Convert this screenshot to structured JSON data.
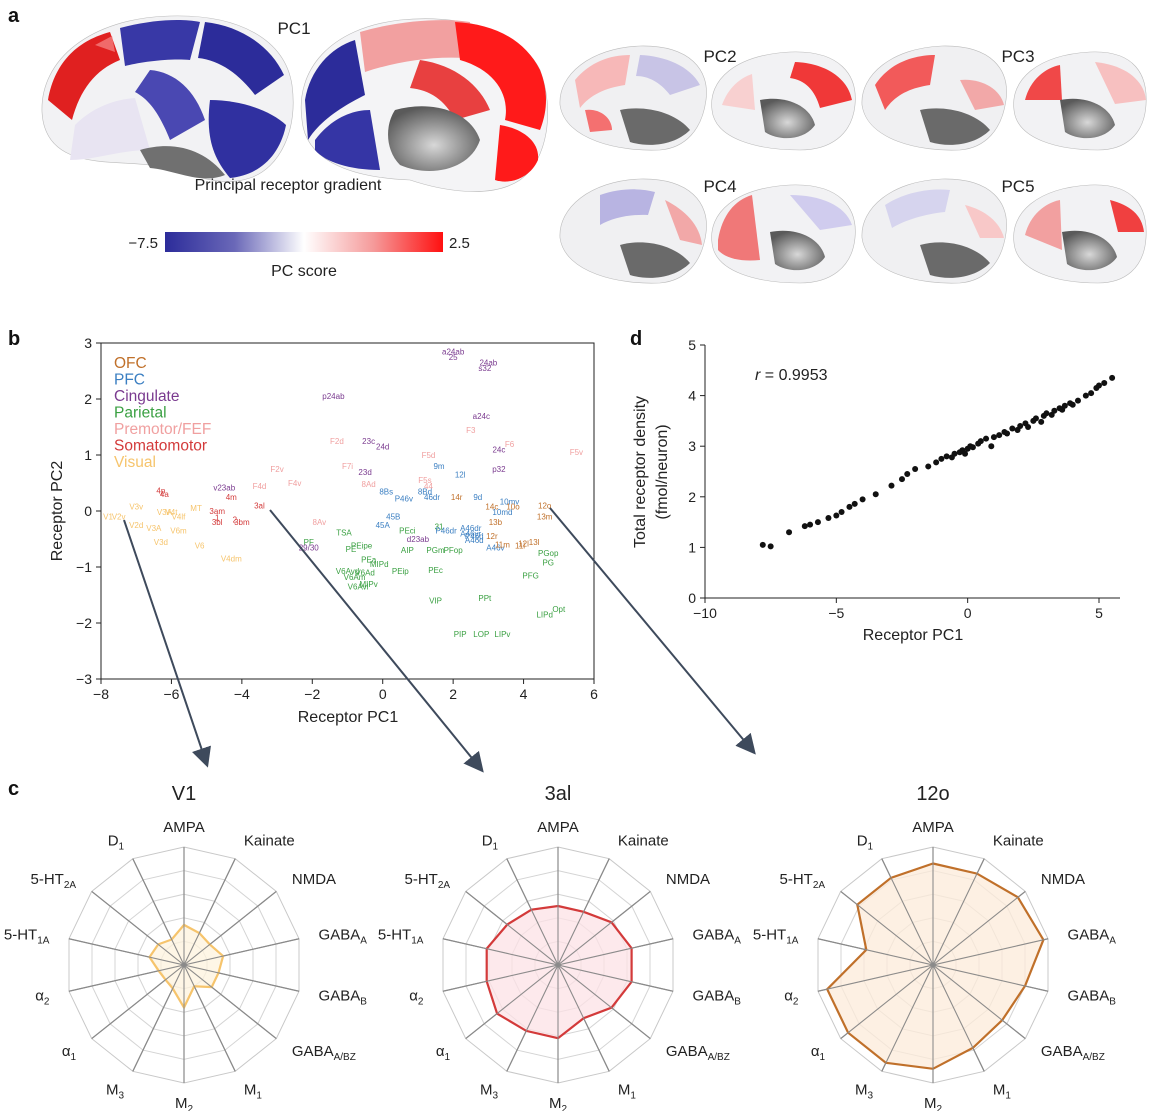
{
  "figure": {
    "panel_labels": {
      "a": "a",
      "b": "b",
      "c": "c",
      "d": "d"
    },
    "colors": {
      "OFC": "#c0702a",
      "PFC": "#3b7fc2",
      "Cingulate": "#7a3a8f",
      "Parietal": "#3aa042",
      "Premotor/FEF": "#f0a0a0",
      "Somatomotor": "#d33a3a",
      "Visual": "#f6c46c",
      "blue_end": "#2c2c9a",
      "red_end": "#ff1010",
      "arrow": "#3e4a5c"
    }
  },
  "panel_a": {
    "pc_titles": [
      "PC1",
      "PC2",
      "PC3",
      "PC4",
      "PC5"
    ],
    "caption": "Principal receptor gradient",
    "colorbar": {
      "min_label": "−7.5",
      "max_label": "2.5",
      "label": "PC score"
    },
    "brain_views": [
      "pc1-lateral-surface",
      "pc1-medial-surface",
      "pc2-lateral-surface",
      "pc2-medial-surface",
      "pc3-lateral-surface",
      "pc3-medial-surface",
      "pc4-lateral-surface",
      "pc4-medial-surface",
      "pc5-lateral-surface",
      "pc5-medial-surface"
    ]
  },
  "panel_b": {
    "xlabel": "Receptor PC1",
    "ylabel": "Receptor PC2",
    "xlim": [
      -8,
      6
    ],
    "ylim": [
      -3,
      3
    ],
    "xticks": [
      "−8",
      "−6",
      "−4",
      "−2",
      "0",
      "2",
      "4",
      "6"
    ],
    "yticks": [
      "−3",
      "−2",
      "−1",
      "0",
      "1",
      "2",
      "3"
    ],
    "legend": [
      {
        "name": "OFC",
        "color": "#c0702a"
      },
      {
        "name": "PFC",
        "color": "#3b7fc2"
      },
      {
        "name": "Cingulate",
        "color": "#7a3a8f"
      },
      {
        "name": "Parietal",
        "color": "#3aa042"
      },
      {
        "name": "Premotor/FEF",
        "color": "#f0a0a0"
      },
      {
        "name": "Somatomotor",
        "color": "#d33a3a"
      },
      {
        "name": "Visual",
        "color": "#f6c46c"
      }
    ],
    "areas": [
      [
        "a24ab",
        2.0,
        2.85,
        "Cingulate"
      ],
      [
        "25",
        2.0,
        2.75,
        "Cingulate"
      ],
      [
        "24ab",
        3.0,
        2.65,
        "Cingulate"
      ],
      [
        "s32",
        2.9,
        2.55,
        "Cingulate"
      ],
      [
        "p24ab",
        -1.4,
        2.05,
        "Cingulate"
      ],
      [
        "a24c",
        2.8,
        1.7,
        "Cingulate"
      ],
      [
        "F3",
        2.5,
        1.45,
        "Premotor/FEF"
      ],
      [
        "F2d",
        -1.3,
        1.25,
        "Premotor/FEF"
      ],
      [
        "23c",
        -0.4,
        1.25,
        "Cingulate"
      ],
      [
        "24d",
        0.0,
        1.15,
        "Cingulate"
      ],
      [
        "F6",
        3.6,
        1.2,
        "Premotor/FEF"
      ],
      [
        "24c",
        3.3,
        1.1,
        "Cingulate"
      ],
      [
        "F5v",
        5.5,
        1.05,
        "Premotor/FEF"
      ],
      [
        "F5d",
        1.3,
        1.0,
        "Premotor/FEF"
      ],
      [
        "9m",
        1.6,
        0.8,
        "PFC"
      ],
      [
        "F7i",
        -1.0,
        0.8,
        "Premotor/FEF"
      ],
      [
        "23d",
        -0.5,
        0.7,
        "Cingulate"
      ],
      [
        "12l",
        2.2,
        0.65,
        "PFC"
      ],
      [
        "p32",
        3.3,
        0.75,
        "Cingulate"
      ],
      [
        "F2v",
        -3.0,
        0.75,
        "Premotor/FEF"
      ],
      [
        "F5s",
        1.2,
        0.55,
        "Premotor/FEF"
      ],
      [
        "F4v",
        -2.5,
        0.5,
        "Premotor/FEF"
      ],
      [
        "F4d",
        -3.5,
        0.45,
        "Premotor/FEF"
      ],
      [
        "8Ad",
        -0.4,
        0.48,
        "Premotor/FEF"
      ],
      [
        "44",
        1.3,
        0.45,
        "Premotor/FEF"
      ],
      [
        "9d",
        2.7,
        0.25,
        "PFC"
      ],
      [
        "8Bs",
        0.1,
        0.35,
        "PFC"
      ],
      [
        "8Bd",
        1.2,
        0.35,
        "PFC"
      ],
      [
        "14r",
        2.1,
        0.25,
        "OFC"
      ],
      [
        "P46v",
        0.6,
        0.22,
        "PFC"
      ],
      [
        "46dr",
        1.4,
        0.25,
        "PFC"
      ],
      [
        "10mv",
        3.6,
        0.17,
        "PFC"
      ],
      [
        "14c",
        3.1,
        0.08,
        "OFC"
      ],
      [
        "10o",
        3.7,
        0.08,
        "OFC"
      ],
      [
        "10md",
        3.4,
        -0.02,
        "PFC"
      ],
      [
        "12o",
        4.6,
        0.1,
        "OFC"
      ],
      [
        "v23ab",
        -4.5,
        0.42,
        "Cingulate"
      ],
      [
        "4p",
        -6.3,
        0.37,
        "Somatomotor"
      ],
      [
        "4a",
        -6.2,
        0.3,
        "Somatomotor"
      ],
      [
        "4m",
        -4.3,
        0.25,
        "Somatomotor"
      ],
      [
        "3al",
        -3.5,
        0.1,
        "Somatomotor"
      ],
      [
        "3am",
        -4.7,
        0.0,
        "Somatomotor"
      ],
      [
        "1",
        -4.7,
        -0.12,
        "Somatomotor"
      ],
      [
        "3bl",
        -4.7,
        -0.2,
        "Somatomotor"
      ],
      [
        "2",
        -4.2,
        -0.15,
        "Somatomotor"
      ],
      [
        "3bm",
        -4.0,
        -0.2,
        "Somatomotor"
      ],
      [
        "13b",
        3.2,
        -0.2,
        "OFC"
      ],
      [
        "13m",
        4.6,
        -0.1,
        "OFC"
      ],
      [
        "V3v",
        -7.0,
        0.08,
        "Visual"
      ],
      [
        "MT",
        -5.3,
        0.05,
        "Visual"
      ],
      [
        "V4t",
        -6.0,
        -0.02,
        "Visual"
      ],
      [
        "V3A",
        -6.2,
        -0.02,
        "Visual"
      ],
      [
        "V4lf",
        -5.8,
        -0.1,
        "Visual"
      ],
      [
        "V1",
        -7.8,
        -0.1,
        "Visual"
      ],
      [
        "V2v",
        -7.5,
        -0.1,
        "Visual"
      ],
      [
        "V2d",
        -7.0,
        -0.25,
        "Visual"
      ],
      [
        "V3A",
        -6.5,
        -0.3,
        "Visual"
      ],
      [
        "V6m",
        -5.8,
        -0.35,
        "Visual"
      ],
      [
        "V3d",
        -6.3,
        -0.55,
        "Visual"
      ],
      [
        "V6",
        -5.2,
        -0.62,
        "Visual"
      ],
      [
        "V4dm",
        -4.3,
        -0.85,
        "Visual"
      ],
      [
        "8Av",
        -1.8,
        -0.2,
        "Premotor/FEF"
      ],
      [
        "TSA",
        -1.1,
        -0.38,
        "Parietal"
      ],
      [
        "45B",
        0.3,
        -0.1,
        "PFC"
      ],
      [
        "45A",
        0.0,
        -0.25,
        "PFC"
      ],
      [
        "PEci",
        0.7,
        -0.35,
        "Parietal"
      ],
      [
        "31",
        1.6,
        -0.28,
        "Parietal"
      ],
      [
        "d23ab",
        1.0,
        -0.5,
        "Cingulate"
      ],
      [
        "P46dr",
        1.8,
        -0.35,
        "PFC"
      ],
      [
        "A46dr",
        2.5,
        -0.3,
        "PFC"
      ],
      [
        "A46vr",
        2.5,
        -0.4,
        "PFC"
      ],
      [
        "A46d",
        2.6,
        -0.52,
        "PFC"
      ],
      [
        "P46d",
        2.6,
        -0.45,
        "PFC"
      ],
      [
        "12r",
        3.1,
        -0.45,
        "OFC"
      ],
      [
        "12l",
        4.0,
        -0.58,
        "OFC"
      ],
      [
        "13l",
        4.3,
        -0.55,
        "OFC"
      ],
      [
        "A46v",
        3.2,
        -0.65,
        "PFC"
      ],
      [
        "11m",
        3.4,
        -0.6,
        "OFC"
      ],
      [
        "11l",
        3.9,
        -0.62,
        "OFC"
      ],
      [
        "PGop",
        4.7,
        -0.75,
        "Parietal"
      ],
      [
        "PG",
        4.7,
        -0.92,
        "Parietal"
      ],
      [
        "PFG",
        4.2,
        -1.15,
        "Parietal"
      ],
      [
        "PF",
        -2.1,
        -0.55,
        "Parietal"
      ],
      [
        "29/30",
        -2.1,
        -0.65,
        "Cingulate"
      ],
      [
        "PEipe",
        -0.6,
        -0.62,
        "Parietal"
      ],
      [
        "PE",
        -0.9,
        -0.68,
        "Parietal"
      ],
      [
        "AIP",
        0.7,
        -0.7,
        "Parietal"
      ],
      [
        "PGm",
        1.5,
        -0.7,
        "Parietal"
      ],
      [
        "PFop",
        2.0,
        -0.7,
        "Parietal"
      ],
      [
        "PEa",
        -0.4,
        -0.87,
        "Parietal"
      ],
      [
        "MIPd",
        -0.1,
        -0.95,
        "Parietal"
      ],
      [
        "PEip",
        0.5,
        -1.07,
        "Parietal"
      ],
      [
        "PEc",
        1.5,
        -1.05,
        "Parietal"
      ],
      [
        "V6Avd",
        -1.0,
        -1.07,
        "Parietal"
      ],
      [
        "V6Ad",
        -0.5,
        -1.1,
        "Parietal"
      ],
      [
        "V6Am",
        -0.8,
        -1.18,
        "Parietal"
      ],
      [
        "MIPv",
        -0.4,
        -1.3,
        "Parietal"
      ],
      [
        "V6Avl",
        -0.7,
        -1.35,
        "Parietal"
      ],
      [
        "VIP",
        1.5,
        -1.6,
        "Parietal"
      ],
      [
        "PPt",
        2.9,
        -1.55,
        "Parietal"
      ],
      [
        "Opt",
        5.0,
        -1.75,
        "Parietal"
      ],
      [
        "LIPd",
        4.6,
        -1.85,
        "Parietal"
      ],
      [
        "PIP",
        2.2,
        -2.2,
        "Parietal"
      ],
      [
        "LOP",
        2.8,
        -2.2,
        "Parietal"
      ],
      [
        "LIPv",
        3.4,
        -2.2,
        "Parietal"
      ]
    ]
  },
  "panel_c": {
    "axes": [
      {
        "base": "AMPA",
        "sub": ""
      },
      {
        "base": "Kainate",
        "sub": ""
      },
      {
        "base": "NMDA",
        "sub": ""
      },
      {
        "base": "GABA",
        "sub": "A"
      },
      {
        "base": "GABA",
        "sub": "B"
      },
      {
        "base": "GABA",
        "sub": "A/BZ"
      },
      {
        "base": "M",
        "sub": "1"
      },
      {
        "base": "M",
        "sub": "2"
      },
      {
        "base": "M",
        "sub": "3"
      },
      {
        "base": "α",
        "sub": "1"
      },
      {
        "base": "α",
        "sub": "2"
      },
      {
        "base": "5-HT",
        "sub": "1A"
      },
      {
        "base": "5-HT",
        "sub": "2A"
      },
      {
        "base": "D",
        "sub": "1"
      }
    ],
    "radars": [
      {
        "title": "V1",
        "color": "#f6c46c",
        "fill": "#fdf3dd",
        "values": [
          0.34,
          0.3,
          0.28,
          0.34,
          0.3,
          0.3,
          0.2,
          0.36,
          0.22,
          0.2,
          0.22,
          0.3,
          0.28,
          0.24
        ]
      },
      {
        "title": "3al",
        "color": "#d33a3a",
        "fill": "#fce1e6",
        "values": [
          0.5,
          0.5,
          0.58,
          0.64,
          0.64,
          0.58,
          0.5,
          0.62,
          0.62,
          0.66,
          0.62,
          0.62,
          0.55,
          0.52
        ]
      },
      {
        "title": "12o",
        "color": "#c0702a",
        "fill": "#fcebd9",
        "values": [
          0.86,
          0.86,
          0.92,
          0.96,
          0.8,
          0.75,
          0.78,
          0.88,
          0.92,
          0.92,
          0.92,
          0.58,
          0.82,
          0.82
        ]
      }
    ]
  },
  "panel_d": {
    "xlabel": "Receptor PC1",
    "ylabel_line1": "Total receptor density",
    "ylabel_line2": "(fmol/neuron)",
    "xlim": [
      -10,
      5.8
    ],
    "ylim": [
      0,
      5
    ],
    "xticks": [
      "−10",
      "−5",
      "0",
      "5"
    ],
    "yticks": [
      "0",
      "1",
      "2",
      "3",
      "4",
      "5"
    ],
    "annotation_r": "r",
    "annotation_value": " = 0.9953",
    "chart_data": {
      "type": "scatter",
      "xlabel": "Receptor PC1",
      "ylabel": "Total receptor density (fmol/neuron)",
      "xlim": [
        -10,
        5.8
      ],
      "ylim": [
        0,
        5
      ],
      "x": [
        -7.8,
        -7.5,
        -6.8,
        -6.2,
        -6.0,
        -5.7,
        -5.3,
        -5.0,
        -4.8,
        -4.5,
        -4.3,
        -4.0,
        -3.5,
        -2.9,
        -2.5,
        -2.3,
        -2.0,
        -1.5,
        -1.2,
        -1.0,
        -0.8,
        -0.6,
        -0.5,
        -0.3,
        -0.2,
        -0.1,
        0.0,
        0.1,
        0.2,
        0.4,
        0.5,
        0.7,
        0.9,
        1.0,
        1.2,
        1.4,
        1.5,
        1.7,
        1.9,
        2.0,
        2.2,
        2.3,
        2.5,
        2.6,
        2.8,
        2.9,
        3.0,
        3.2,
        3.3,
        3.5,
        3.6,
        3.7,
        3.9,
        4.0,
        4.2,
        4.5,
        4.7,
        4.9,
        5.0,
        5.2,
        5.5
      ],
      "y": [
        1.05,
        1.02,
        1.3,
        1.42,
        1.45,
        1.5,
        1.58,
        1.63,
        1.7,
        1.8,
        1.86,
        1.95,
        2.05,
        2.22,
        2.35,
        2.45,
        2.55,
        2.6,
        2.68,
        2.75,
        2.8,
        2.78,
        2.85,
        2.88,
        2.92,
        2.85,
        2.95,
        3.0,
        2.98,
        3.05,
        3.1,
        3.15,
        3.0,
        3.18,
        3.22,
        3.28,
        3.25,
        3.35,
        3.32,
        3.4,
        3.45,
        3.38,
        3.5,
        3.55,
        3.48,
        3.6,
        3.65,
        3.62,
        3.7,
        3.75,
        3.72,
        3.8,
        3.85,
        3.82,
        3.9,
        4.0,
        4.05,
        4.15,
        4.2,
        4.25,
        4.35
      ]
    }
  }
}
